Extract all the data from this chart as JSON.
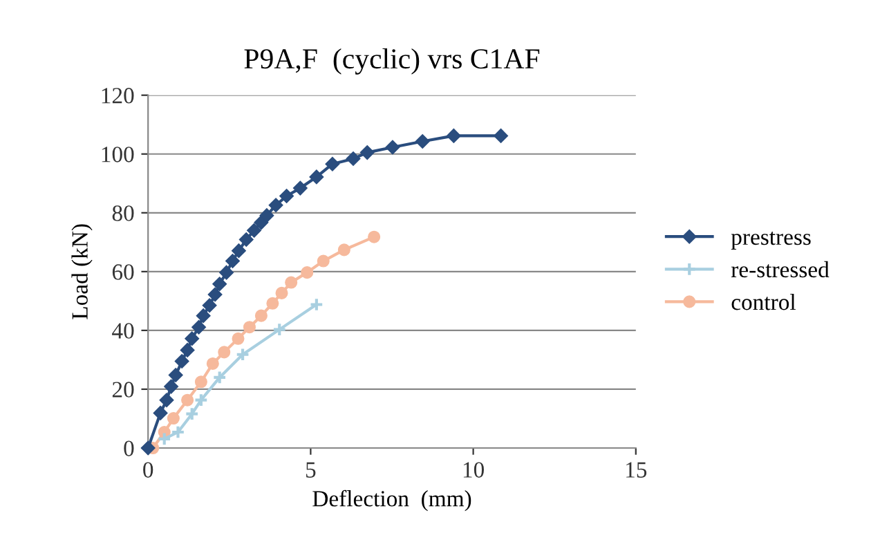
{
  "chart_data": {
    "type": "line",
    "title": "P9A,F  (cyclic) vrs C1AF",
    "xlabel": "Deflection  (mm)",
    "ylabel": "Load (kN)",
    "xlim": [
      0,
      15
    ],
    "xticks": [
      0,
      5,
      10,
      15
    ],
    "ylim": [
      0,
      120
    ],
    "yticks": [
      0,
      20,
      40,
      60,
      80,
      100,
      120
    ],
    "grid": "y",
    "legend": "right",
    "line_style": "solid",
    "series": [
      {
        "name": "prestress",
        "color": "#2a4d7e",
        "marker": "diamond",
        "x": [
          0,
          0.38,
          0.57,
          0.71,
          0.85,
          1.04,
          1.21,
          1.35,
          1.56,
          1.7,
          1.89,
          2.06,
          2.2,
          2.41,
          2.6,
          2.79,
          3.02,
          3.26,
          3.48,
          3.65,
          3.93,
          4.26,
          4.68,
          5.18,
          5.67,
          6.31,
          6.74,
          7.52,
          8.44,
          9.4,
          10.85
        ],
        "values": [
          0,
          11.9,
          16.3,
          20.9,
          24.8,
          29.5,
          33.3,
          37.2,
          41.1,
          45.0,
          48.5,
          52.2,
          55.8,
          59.7,
          63.6,
          67.1,
          70.9,
          74.0,
          76.7,
          79.1,
          82.6,
          85.7,
          88.4,
          92.2,
          96.6,
          98.4,
          100.5,
          102.3,
          104.3,
          106.2,
          106.2
        ]
      },
      {
        "name": "re-stressed",
        "color": "#a8cfe0",
        "marker": "cross",
        "x": [
          0.5,
          0.92,
          1.35,
          1.63,
          2.2,
          2.91,
          4.04,
          5.18
        ],
        "values": [
          3.1,
          5.4,
          11.6,
          16.3,
          24.0,
          31.8,
          40.3,
          48.8
        ]
      },
      {
        "name": "control",
        "color": "#f6b99c",
        "marker": "circle",
        "x": [
          0.15,
          0.5,
          0.78,
          1.21,
          1.63,
          1.99,
          2.34,
          2.77,
          3.12,
          3.48,
          3.83,
          4.11,
          4.4,
          4.89,
          5.39,
          6.03,
          6.95
        ],
        "values": [
          0,
          5.4,
          10.1,
          16.3,
          22.5,
          28.7,
          32.6,
          37.2,
          41.1,
          45.0,
          49.2,
          52.7,
          56.3,
          59.7,
          63.6,
          67.4,
          71.8
        ]
      }
    ]
  }
}
